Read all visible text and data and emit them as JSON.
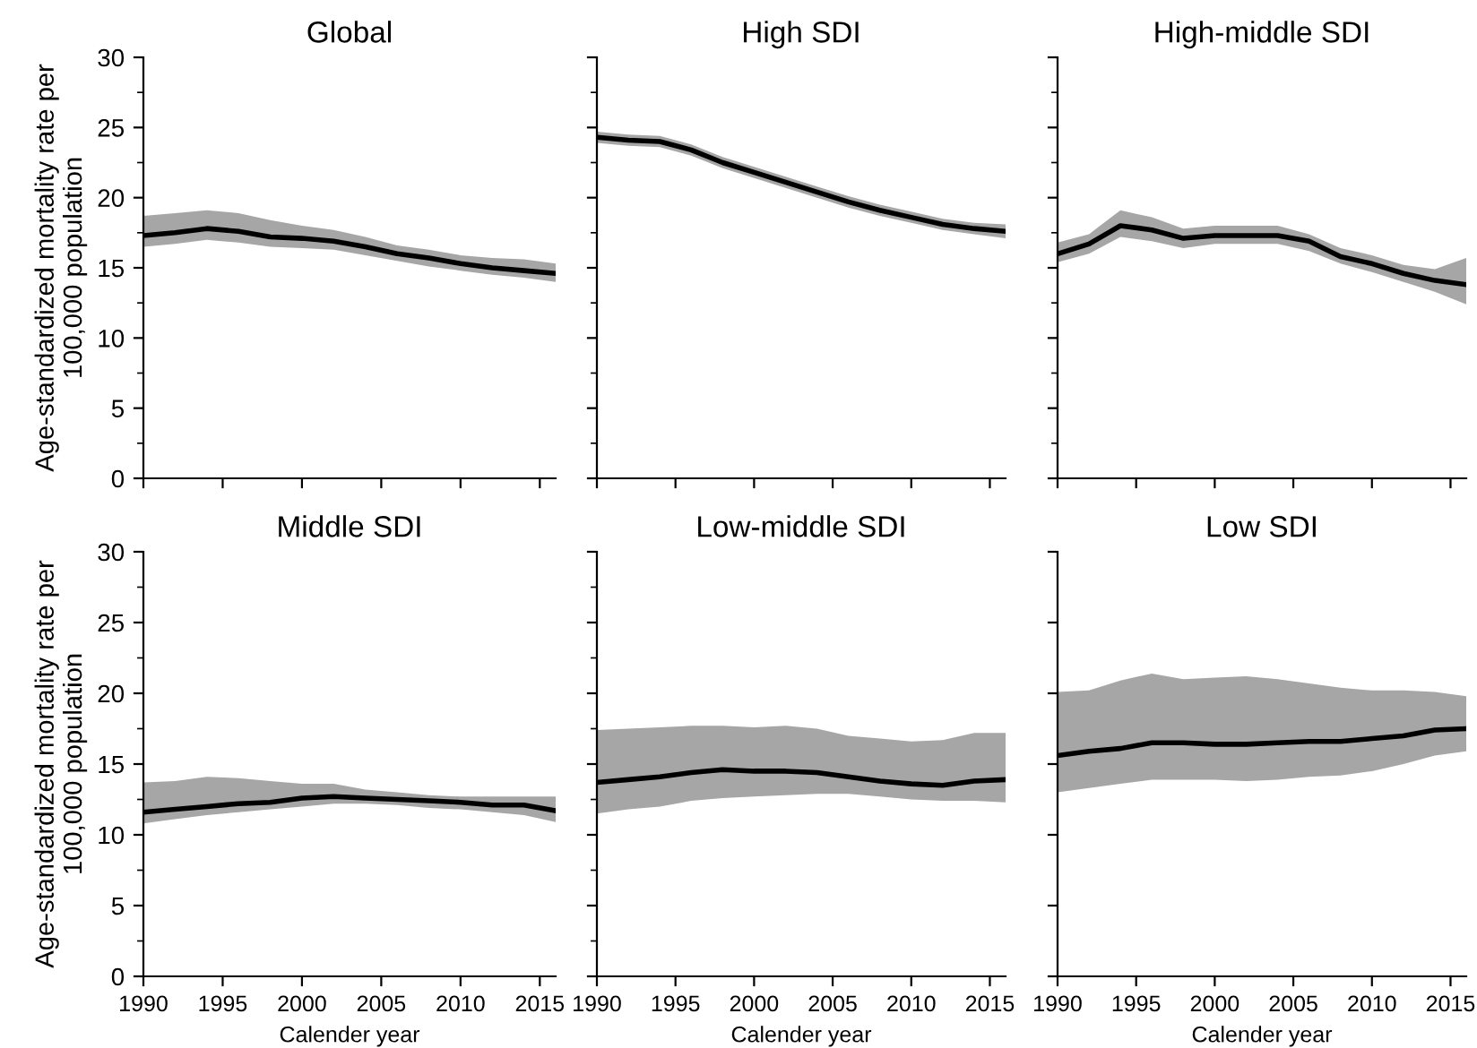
{
  "chart_data": [
    {
      "type": "line",
      "title": "Global",
      "ylabel": "Age-standardized mortality rate per 100,000 population",
      "x": [
        1990,
        1992,
        1994,
        1996,
        1998,
        2000,
        2002,
        2004,
        2006,
        2008,
        2010,
        2012,
        2014,
        2016
      ],
      "xlim": [
        1990,
        2016
      ],
      "xticks": [
        1990,
        1995,
        2000,
        2005,
        2010,
        2015
      ],
      "ylim": [
        0,
        30
      ],
      "yticks": [
        0,
        {
          "value": 2.5,
          "label": null
        },
        5,
        {
          "value": 7.5,
          "label": null
        },
        10,
        {
          "value": 12.5,
          "label": null
        },
        15,
        {
          "value": 17.5,
          "label": null
        },
        20,
        {
          "value": 22.5,
          "label": null
        },
        25,
        {
          "value": 27.5,
          "label": null
        },
        30
      ],
      "tick_labels": "y",
      "grid": false,
      "legend": false,
      "series": [
        {
          "color": "#000000",
          "values": [
            17.3,
            17.5,
            17.8,
            17.6,
            17.2,
            17.1,
            16.9,
            16.5,
            16.0,
            15.7,
            15.3,
            15.0,
            14.8,
            14.6
          ],
          "upper": [
            18.7,
            18.9,
            19.1,
            18.9,
            18.4,
            18.0,
            17.7,
            17.2,
            16.6,
            16.3,
            15.9,
            15.7,
            15.6,
            15.3
          ],
          "lower": [
            16.5,
            16.7,
            17.0,
            16.8,
            16.5,
            16.4,
            16.3,
            15.9,
            15.5,
            15.1,
            14.8,
            14.5,
            14.3,
            14.0
          ]
        }
      ]
    },
    {
      "type": "line",
      "title": "High SDI",
      "x": [
        1990,
        1992,
        1994,
        1996,
        1998,
        2000,
        2002,
        2004,
        2006,
        2008,
        2010,
        2012,
        2014,
        2016
      ],
      "xlim": [
        1990,
        2016
      ],
      "xticks": [
        1990,
        1995,
        2000,
        2005,
        2010,
        2015
      ],
      "ylim": [
        0,
        30
      ],
      "yticks": [
        0,
        {
          "value": 2.5,
          "label": null
        },
        5,
        {
          "value": 7.5,
          "label": null
        },
        10,
        {
          "value": 12.5,
          "label": null
        },
        15,
        {
          "value": 17.5,
          "label": null
        },
        20,
        {
          "value": 22.5,
          "label": null
        },
        25,
        {
          "value": 27.5,
          "label": null
        },
        30
      ],
      "tick_labels": false,
      "grid": false,
      "legend": false,
      "series": [
        {
          "color": "#000000",
          "values": [
            24.3,
            24.1,
            24.0,
            23.4,
            22.5,
            21.8,
            21.1,
            20.4,
            19.7,
            19.1,
            18.6,
            18.1,
            17.8,
            17.6
          ],
          "upper": [
            24.7,
            24.5,
            24.4,
            23.8,
            22.9,
            22.2,
            21.5,
            20.8,
            20.1,
            19.5,
            19.0,
            18.5,
            18.2,
            18.1
          ],
          "lower": [
            23.9,
            23.7,
            23.6,
            23.0,
            22.1,
            21.4,
            20.7,
            20.0,
            19.3,
            18.7,
            18.2,
            17.7,
            17.4,
            17.1
          ]
        }
      ]
    },
    {
      "type": "line",
      "title": "High-middle SDI",
      "x": [
        1990,
        1992,
        1994,
        1996,
        1998,
        2000,
        2002,
        2004,
        2006,
        2008,
        2010,
        2012,
        2014,
        2016
      ],
      "xlim": [
        1990,
        2016
      ],
      "xticks": [
        1990,
        1995,
        2000,
        2005,
        2010,
        2015
      ],
      "ylim": [
        0,
        30
      ],
      "yticks": [
        0,
        {
          "value": 2.5,
          "label": null
        },
        5,
        {
          "value": 7.5,
          "label": null
        },
        10,
        {
          "value": 12.5,
          "label": null
        },
        15,
        {
          "value": 17.5,
          "label": null
        },
        20,
        {
          "value": 22.5,
          "label": null
        },
        25,
        {
          "value": 27.5,
          "label": null
        },
        30
      ],
      "tick_labels": false,
      "grid": false,
      "legend": false,
      "series": [
        {
          "color": "#000000",
          "values": [
            16.0,
            16.7,
            18.0,
            17.7,
            17.1,
            17.3,
            17.3,
            17.3,
            16.9,
            15.8,
            15.3,
            14.6,
            14.1,
            13.8
          ],
          "upper": [
            16.8,
            17.4,
            19.1,
            18.6,
            17.8,
            18.0,
            18.0,
            18.0,
            17.4,
            16.4,
            15.9,
            15.2,
            14.9,
            15.7
          ],
          "lower": [
            15.4,
            16.0,
            17.2,
            16.9,
            16.4,
            16.7,
            16.7,
            16.7,
            16.2,
            15.3,
            14.7,
            14.0,
            13.3,
            12.4
          ]
        }
      ]
    },
    {
      "type": "line",
      "title": "Middle SDI",
      "ylabel": "Age-standardized mortality rate per 100,000 population",
      "xlabel": "Calender year",
      "x": [
        1990,
        1992,
        1994,
        1996,
        1998,
        2000,
        2002,
        2004,
        2006,
        2008,
        2010,
        2012,
        2014,
        2016
      ],
      "xlim": [
        1990,
        2016
      ],
      "xticks": [
        1990,
        1995,
        2000,
        2005,
        2010,
        2015
      ],
      "ylim": [
        0,
        30
      ],
      "yticks": [
        0,
        {
          "value": 2.5,
          "label": null
        },
        5,
        {
          "value": 7.5,
          "label": null
        },
        10,
        {
          "value": 12.5,
          "label": null
        },
        15,
        {
          "value": 17.5,
          "label": null
        },
        20,
        {
          "value": 22.5,
          "label": null
        },
        25,
        {
          "value": 27.5,
          "label": null
        },
        30
      ],
      "grid": false,
      "legend": false,
      "series": [
        {
          "color": "#000000",
          "values": [
            11.6,
            11.8,
            12.0,
            12.2,
            12.3,
            12.6,
            12.7,
            12.6,
            12.5,
            12.4,
            12.3,
            12.1,
            12.1,
            11.7
          ],
          "upper": [
            13.7,
            13.8,
            14.1,
            14.0,
            13.8,
            13.6,
            13.6,
            13.2,
            13.0,
            12.8,
            12.7,
            12.7,
            12.7,
            12.7
          ],
          "lower": [
            10.8,
            11.1,
            11.4,
            11.6,
            11.8,
            12.0,
            12.2,
            12.2,
            12.1,
            11.9,
            11.8,
            11.6,
            11.4,
            10.9
          ]
        }
      ]
    },
    {
      "type": "line",
      "title": "Low-middle SDI",
      "xlabel": "Calender year",
      "x": [
        1990,
        1992,
        1994,
        1996,
        1998,
        2000,
        2002,
        2004,
        2006,
        2008,
        2010,
        2012,
        2014,
        2016
      ],
      "xlim": [
        1990,
        2016
      ],
      "xticks": [
        1990,
        1995,
        2000,
        2005,
        2010,
        2015
      ],
      "ylim": [
        0,
        30
      ],
      "yticks": [
        0,
        {
          "value": 2.5,
          "label": null
        },
        5,
        {
          "value": 7.5,
          "label": null
        },
        10,
        {
          "value": 12.5,
          "label": null
        },
        15,
        {
          "value": 17.5,
          "label": null
        },
        20,
        {
          "value": 22.5,
          "label": null
        },
        25,
        {
          "value": 27.5,
          "label": null
        },
        30
      ],
      "tick_labels": "x",
      "grid": false,
      "legend": false,
      "series": [
        {
          "color": "#000000",
          "values": [
            13.7,
            13.9,
            14.1,
            14.4,
            14.6,
            14.5,
            14.5,
            14.4,
            14.1,
            13.8,
            13.6,
            13.5,
            13.8,
            13.9
          ],
          "upper": [
            17.4,
            17.5,
            17.6,
            17.7,
            17.7,
            17.6,
            17.7,
            17.5,
            17.0,
            16.8,
            16.6,
            16.7,
            17.2,
            17.2
          ],
          "lower": [
            11.5,
            11.8,
            12.0,
            12.4,
            12.6,
            12.7,
            12.8,
            12.9,
            12.9,
            12.7,
            12.5,
            12.4,
            12.4,
            12.3
          ]
        }
      ]
    },
    {
      "type": "line",
      "title": "Low SDI",
      "xlabel": "Calender year",
      "x": [
        1990,
        1992,
        1994,
        1996,
        1998,
        2000,
        2002,
        2004,
        2006,
        2008,
        2010,
        2012,
        2014,
        2016
      ],
      "xlim": [
        1990,
        2016
      ],
      "xticks": [
        1990,
        1995,
        2000,
        2005,
        2010,
        2015
      ],
      "ylim": [
        0,
        30
      ],
      "yticks": [
        0,
        5,
        10,
        15,
        20,
        25,
        30
      ],
      "tick_labels": "x",
      "grid": false,
      "legend": false,
      "series": [
        {
          "color": "#000000",
          "values": [
            15.6,
            15.9,
            16.1,
            16.5,
            16.5,
            16.4,
            16.4,
            16.5,
            16.6,
            16.6,
            16.8,
            17.0,
            17.4,
            17.5
          ],
          "upper": [
            20.1,
            20.2,
            20.9,
            21.4,
            21.0,
            21.1,
            21.2,
            21.0,
            20.7,
            20.4,
            20.2,
            20.2,
            20.1,
            19.8
          ],
          "lower": [
            13.0,
            13.3,
            13.6,
            13.9,
            13.9,
            13.9,
            13.8,
            13.9,
            14.1,
            14.2,
            14.5,
            15.0,
            15.6,
            15.9
          ]
        }
      ]
    }
  ]
}
